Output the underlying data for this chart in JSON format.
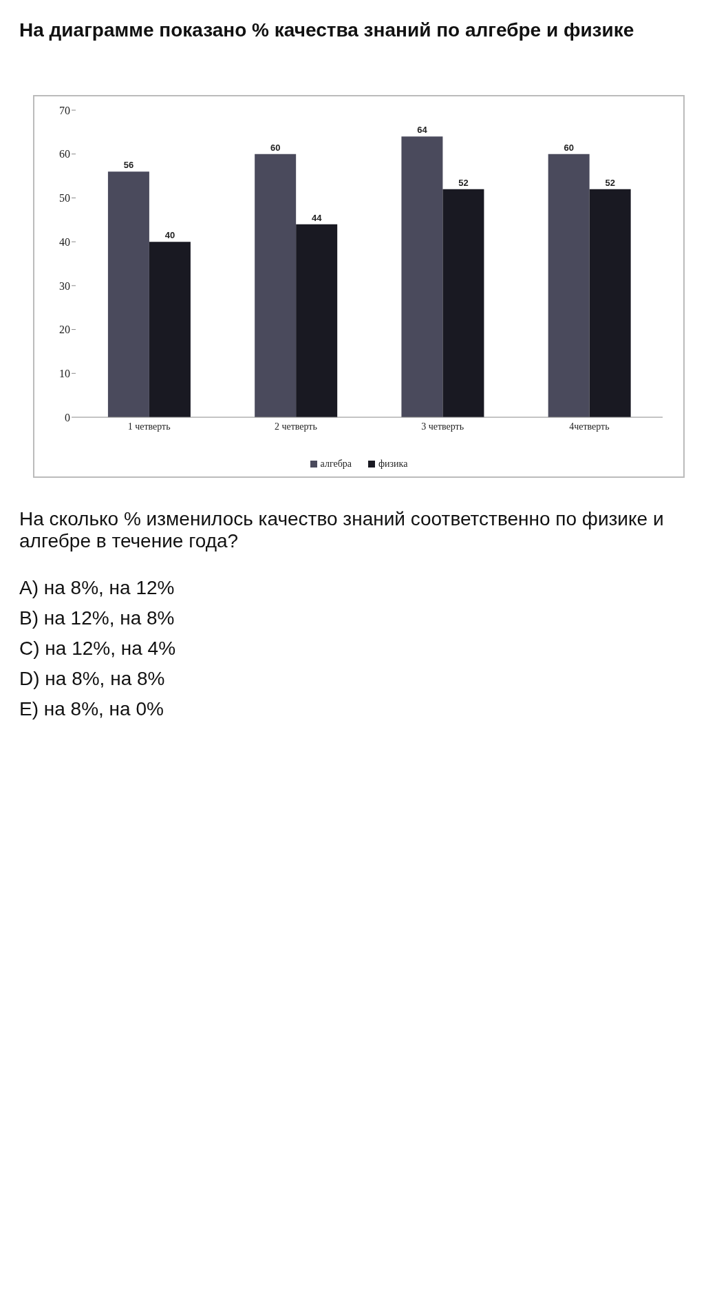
{
  "chart_data": {
    "type": "bar",
    "title": "На диаграмме показано % качества знаний по алгебре и физике",
    "categories": [
      "1 четверть",
      "2 четверть",
      "3 четверть",
      "4четверть"
    ],
    "series": [
      {
        "name": "алгебра",
        "color": "#4a4a5c",
        "values": [
          56,
          60,
          64,
          60
        ]
      },
      {
        "name": "физика",
        "color": "#191922",
        "values": [
          40,
          44,
          52,
          52
        ]
      }
    ],
    "ylim": [
      0,
      70
    ],
    "yticks": [
      0,
      10,
      20,
      30,
      40,
      50,
      60,
      70
    ],
    "grid": false,
    "legend": "bottom",
    "data_labels": true,
    "annotations": [
      "На сколько % изменилось качество знаний соответственно по физике и алгебре в течение года?",
      "A) на 8%, на 12%",
      "B) на 12%, на 8%",
      "C) на 12%, на 4%",
      "D) на 8%, на 8%",
      "E) на 8%, на 0%"
    ]
  }
}
